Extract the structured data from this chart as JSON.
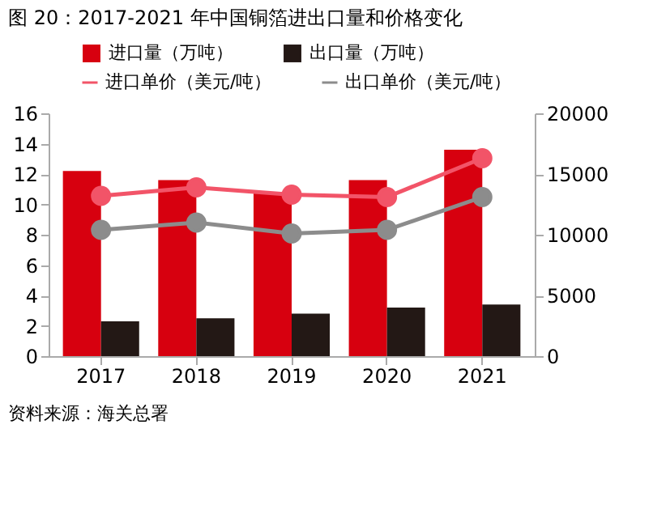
{
  "chart_data": {
    "type": "bar",
    "title": "图 20：2017-2021 年中国铜箔进出口量和价格变化",
    "categories": [
      "2017",
      "2018",
      "2019",
      "2020",
      "2021"
    ],
    "series": [
      {
        "name": "进口量（万吨）",
        "color": "#d7000f",
        "values": [
          12.2,
          11.6,
          10.8,
          11.6,
          13.6
        ]
      },
      {
        "name": "出口量（万吨）",
        "color": "#231815",
        "values": [
          2.3,
          2.5,
          2.8,
          3.2,
          3.4
        ]
      },
      {
        "name": "进口单价（美元/吨）",
        "color": "#f25468",
        "type": "line",
        "axis": "y2",
        "values": [
          13200,
          13900,
          13300,
          13100,
          16300
        ]
      },
      {
        "name": "出口单价（美元/吨）",
        "color": "#8c8c8c",
        "type": "line",
        "axis": "y2",
        "values": [
          10400,
          11000,
          10100,
          10400,
          13100
        ]
      }
    ],
    "ylim": [
      0,
      16
    ],
    "yticks": [
      0,
      2,
      4,
      6,
      8,
      10,
      12,
      14,
      16
    ],
    "y2lim": [
      0,
      20000
    ],
    "y2ticks": [
      0,
      5000,
      10000,
      15000,
      20000
    ],
    "marker": "circle",
    "legend": "top",
    "grid": false,
    "annotations": [
      "资料来源：海关总署"
    ]
  }
}
